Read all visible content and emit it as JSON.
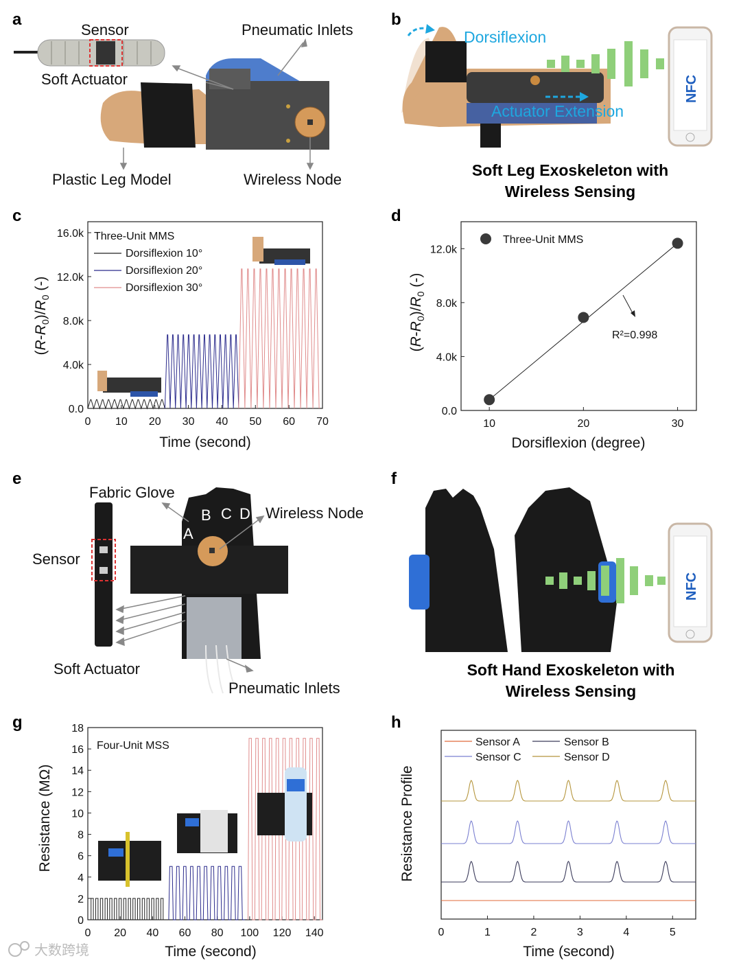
{
  "panel_labels": {
    "a": "a",
    "b": "b",
    "c": "c",
    "d": "d",
    "e": "e",
    "f": "f",
    "g": "g",
    "h": "h"
  },
  "panel_a": {
    "sensor": "Sensor",
    "soft_actuator": "Soft Actuator",
    "pneumatic_inlets": "Pneumatic Inlets",
    "plastic_leg_model": "Plastic Leg Model",
    "wireless_node": "Wireless Node"
  },
  "panel_b": {
    "dorsiflexion": "Dorsiflexion",
    "actuator_extension": "Actuator Extension",
    "nfc": "NFC",
    "title_line1": "Soft Leg Exoskeleton with",
    "title_line2": "Wireless Sensing"
  },
  "panel_e": {
    "fabric_glove": "Fabric Glove",
    "wireless_node": "Wireless Node",
    "sensor": "Sensor",
    "soft_actuator": "Soft Actuator",
    "pneumatic_inlets": "Pneumatic Inlets",
    "finger_a": "A",
    "finger_b": "B",
    "finger_c": "C",
    "finger_d": "D"
  },
  "panel_f": {
    "nfc": "NFC",
    "title_line1": "Soft Hand Exoskeleton with",
    "title_line2": "Wireless Sensing"
  },
  "watermark": "大数跨境",
  "colors": {
    "black": "#222222",
    "navy": "#2b2b8c",
    "pink": "#e08c8c",
    "orange": "#e06a3a",
    "slate": "#3a3a5a",
    "periwinkle": "#7a7fd0",
    "olive": "#b5953c",
    "nfc_green": "#8fcf7a",
    "nfc_blue": "#1f5fbf",
    "accent_blue": "#1ea7df"
  },
  "chart_data": [
    {
      "id": "c",
      "type": "line",
      "xlabel": "Time (second)",
      "ylabel": "(R-R0)/R0 (-)",
      "xlim": [
        0,
        70
      ],
      "ylim": [
        0,
        17000
      ],
      "xticks": [
        "0",
        "10",
        "20",
        "30",
        "40",
        "50",
        "60",
        "70"
      ],
      "yticks": [
        "0.0",
        "4.0k",
        "8.0k",
        "12.0k",
        "16.0k"
      ],
      "legend_title": "Three-Unit MMS",
      "legend_position": "top-left",
      "series": [
        {
          "name": "Dorsiflexion 10°",
          "x_range": [
            0,
            23
          ],
          "cycles": 13,
          "peak": 800,
          "color": "#222222"
        },
        {
          "name": "Dorsiflexion 20°",
          "x_range": [
            23,
            45
          ],
          "cycles": 14,
          "peak": 6700,
          "color": "#2b2b8c"
        },
        {
          "name": "Dorsiflexion 30°",
          "x_range": [
            45,
            69
          ],
          "cycles": 13,
          "peak": 12700,
          "color": "#e08c8c"
        }
      ]
    },
    {
      "id": "d",
      "type": "scatter",
      "xlabel": "Dorsiflexion (degree)",
      "ylabel": "(R-R0)/R0 (-)",
      "xlim": [
        7,
        32
      ],
      "ylim": [
        0,
        14000
      ],
      "xticks": [
        "10",
        "20",
        "30"
      ],
      "yticks": [
        "0.0",
        "4.0k",
        "8.0k",
        "12.0k"
      ],
      "legend": "Three-Unit MMS",
      "legend_position": "top-left",
      "points": [
        {
          "x": 10,
          "y": 800
        },
        {
          "x": 20,
          "y": 6900
        },
        {
          "x": 30,
          "y": 12400
        }
      ],
      "fit": "linear",
      "annotation": "R²=0.998"
    },
    {
      "id": "g",
      "type": "line",
      "xlabel": "Time (second)",
      "ylabel": "Resistance (MΩ)",
      "xlim": [
        0,
        145
      ],
      "ylim": [
        0,
        18
      ],
      "xticks": [
        "0",
        "20",
        "40",
        "60",
        "80",
        "100",
        "120",
        "140"
      ],
      "yticks": [
        "0",
        "2",
        "4",
        "6",
        "8",
        "10",
        "12",
        "14",
        "16",
        "18"
      ],
      "legend_title": "Four-Unit MSS",
      "legend_position": "top-left",
      "series": [
        {
          "x_range": [
            2,
            48
          ],
          "cycles": 16,
          "peak": 2,
          "color": "#222222",
          "shape": "square"
        },
        {
          "x_range": [
            50,
            97
          ],
          "cycles": 11,
          "peak": 5,
          "color": "#2b2b8c"
        },
        {
          "x_range": [
            99,
            145
          ],
          "cycles": 11,
          "peak": 17,
          "color": "#e08c8c"
        }
      ]
    },
    {
      "id": "h",
      "type": "line",
      "xlabel": "Time (second)",
      "ylabel": "Resistance Profile",
      "xlim": [
        0,
        5.5
      ],
      "xticks": [
        "0",
        "1",
        "2",
        "3",
        "4",
        "5"
      ],
      "legend_position": "top-left",
      "peaks_x": [
        0.65,
        1.65,
        2.75,
        3.8,
        4.85
      ],
      "series": [
        {
          "name": "Sensor A",
          "color": "#e06a3a",
          "baseline": 0.0,
          "amp": 0
        },
        {
          "name": "Sensor B",
          "color": "#3a3a5a",
          "baseline": 1.0,
          "amp": 1.0
        },
        {
          "name": "Sensor C",
          "color": "#7a7fd0",
          "baseline": 2.0,
          "amp": 1.1
        },
        {
          "name": "Sensor D",
          "color": "#b5953c",
          "baseline": 3.0,
          "amp": 1.0
        }
      ]
    }
  ]
}
